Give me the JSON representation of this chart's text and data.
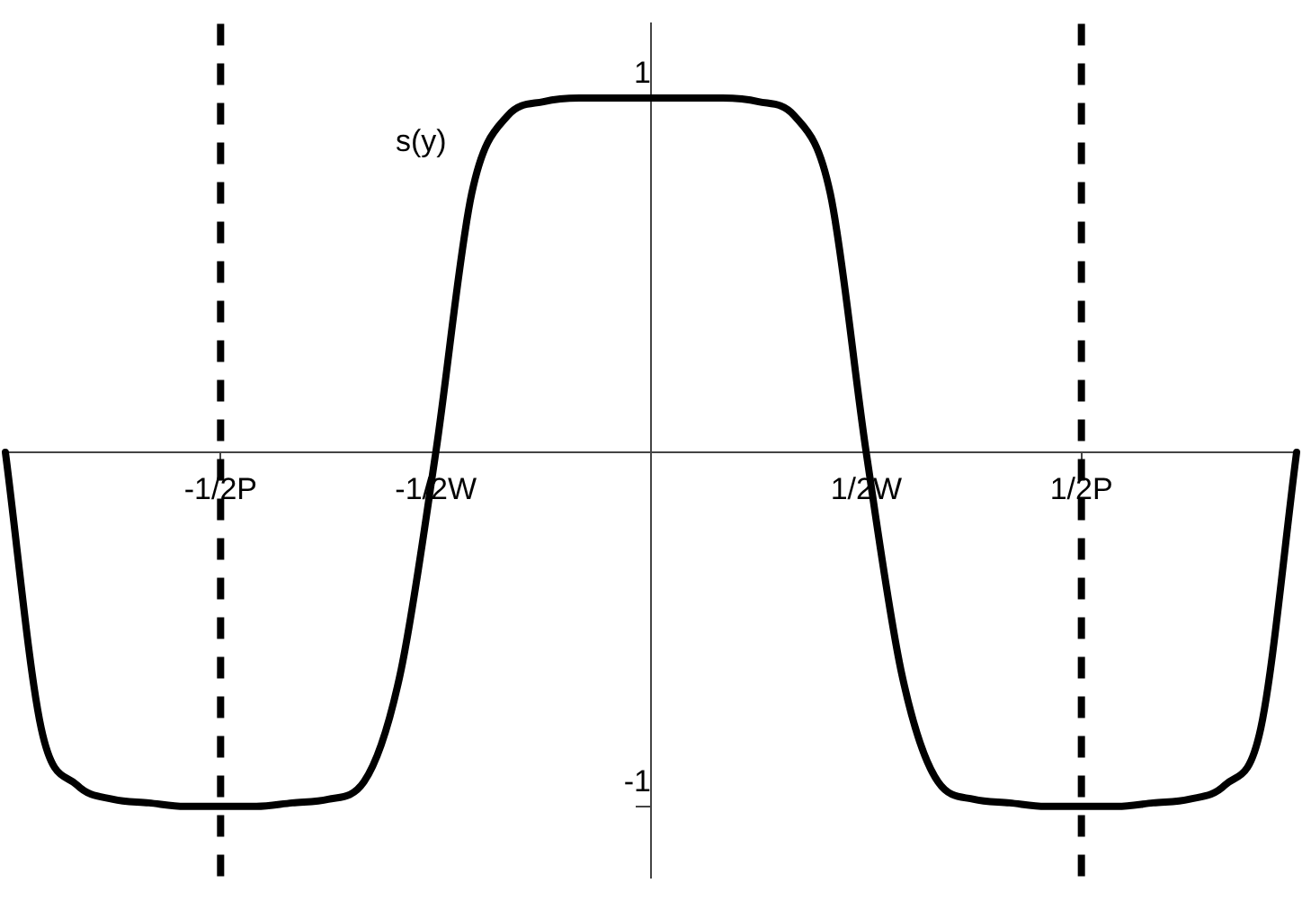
{
  "chart_data": {
    "type": "line",
    "ylim": [
      -1.2,
      1.21
    ],
    "yticks": [
      -1,
      1
    ],
    "grid": false,
    "legend": false,
    "marker": "none",
    "line_style": "solid",
    "categories": [
      null,
      null,
      null,
      null,
      null,
      null,
      "-1/2P",
      null,
      null,
      null,
      null,
      null,
      "-1/2W",
      null,
      null,
      null,
      null,
      null,
      null,
      null,
      null,
      null,
      null,
      null,
      "1/2W",
      null,
      null,
      null,
      null,
      null,
      "1/2P",
      null,
      null,
      null,
      null,
      null,
      null
    ],
    "series": [
      {
        "color": "#000000",
        "values": [
          0,
          -0.78,
          -0.94,
          -0.98,
          -0.99,
          -1.0,
          -1.0,
          -1.0,
          -0.99,
          -0.98,
          -0.93,
          -0.63,
          0,
          0.73,
          0.95,
          0.99,
          1.0,
          1.0,
          1.0,
          1.0,
          1.0,
          0.99,
          0.95,
          0.73,
          0,
          -0.63,
          -0.93,
          -0.98,
          -0.99,
          -1.0,
          -1.0,
          -1.0,
          -0.99,
          -0.98,
          -0.94,
          -0.78,
          0
        ]
      }
    ],
    "ref_lines": [
      {
        "axis": "x",
        "value": "-1/2P",
        "color": "#000000",
        "line_style": "dashed"
      },
      {
        "axis": "x",
        "value": "1/2P",
        "color": "#000000",
        "line_style": "dashed"
      }
    ],
    "annotations": [
      "s(y)"
    ]
  }
}
